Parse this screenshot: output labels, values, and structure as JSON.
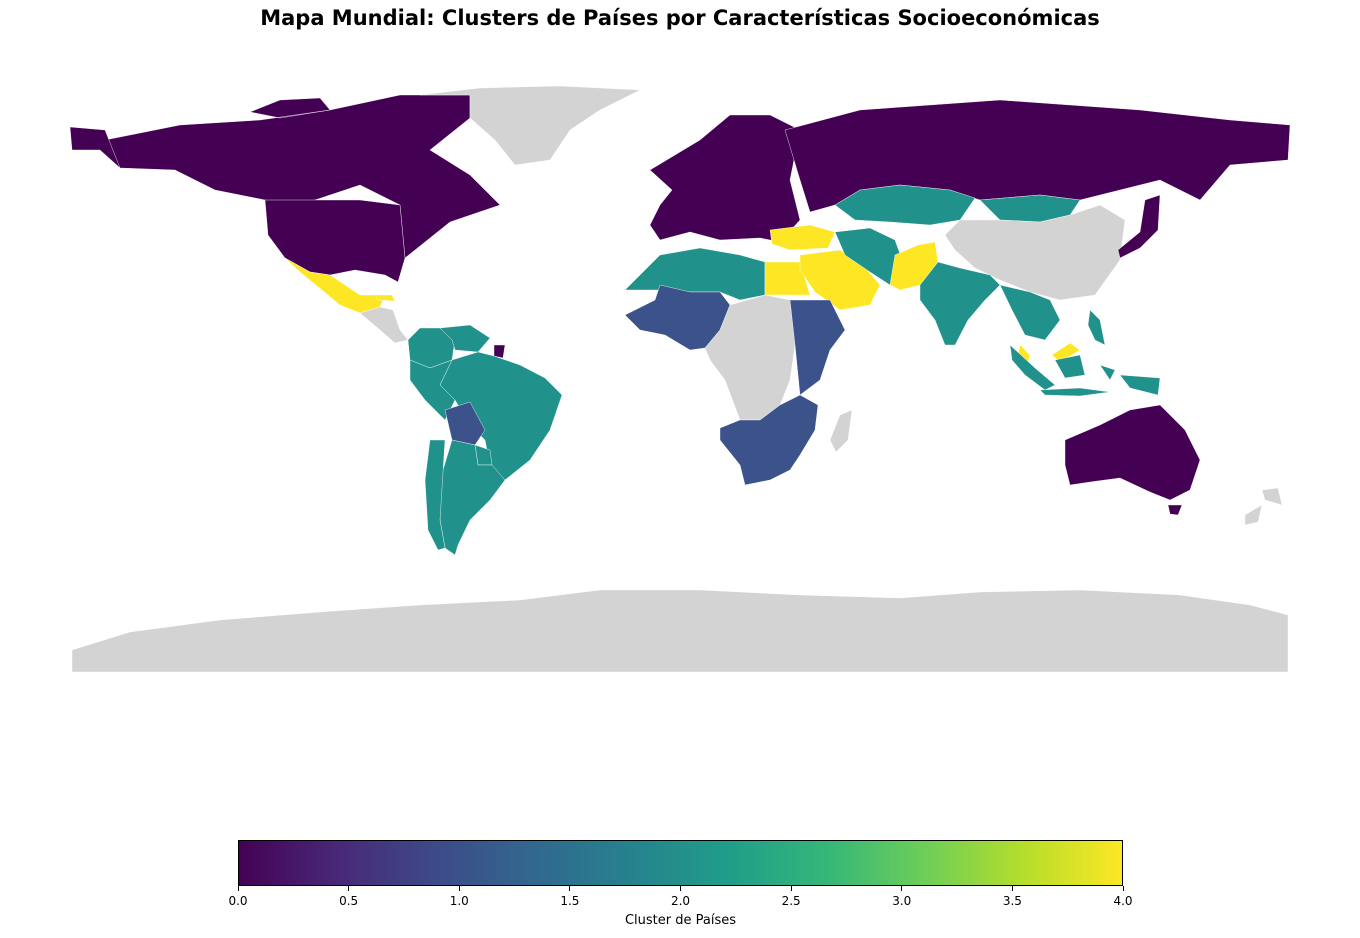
{
  "title": "Mapa Mundial: Clusters de Países por Características Socioeconómicas",
  "colorbar": {
    "label": "Cluster de Países",
    "ticks": [
      "0.0",
      "0.5",
      "1.0",
      "1.5",
      "2.0",
      "2.5",
      "3.0",
      "3.5",
      "4.0"
    ],
    "range": [
      0,
      4
    ]
  },
  "colors": {
    "cluster_0": "#440154",
    "cluster_1": "#3b528b",
    "cluster_2": "#21918c",
    "cluster_3": "#5ec962",
    "cluster_4": "#fde725",
    "no_data": "#d3d3d3"
  },
  "regions": [
    {
      "name": "Canada",
      "cluster": 0
    },
    {
      "name": "United States",
      "cluster": 0
    },
    {
      "name": "Alaska",
      "cluster": 0
    },
    {
      "name": "Mexico",
      "cluster": 4
    },
    {
      "name": "Central America",
      "cluster": null
    },
    {
      "name": "Cuba",
      "cluster": 4
    },
    {
      "name": "Greenland",
      "cluster": null
    },
    {
      "name": "Colombia",
      "cluster": 2
    },
    {
      "name": "Venezuela",
      "cluster": 2
    },
    {
      "name": "French Guiana",
      "cluster": 0
    },
    {
      "name": "Brazil",
      "cluster": 2
    },
    {
      "name": "Peru",
      "cluster": 2
    },
    {
      "name": "Bolivia",
      "cluster": 1
    },
    {
      "name": "Paraguay",
      "cluster": 2
    },
    {
      "name": "Argentina",
      "cluster": 2
    },
    {
      "name": "Chile",
      "cluster": 2
    },
    {
      "name": "Europe",
      "cluster": 0
    },
    {
      "name": "Russia",
      "cluster": 0
    },
    {
      "name": "Turkey",
      "cluster": 4
    },
    {
      "name": "North Africa",
      "cluster": 2
    },
    {
      "name": "Egypt",
      "cluster": 4
    },
    {
      "name": "Saudi Arabia",
      "cluster": 4
    },
    {
      "name": "Iran",
      "cluster": 2
    },
    {
      "name": "Kazakhstan",
      "cluster": 2
    },
    {
      "name": "Mongolia",
      "cluster": 2
    },
    {
      "name": "China",
      "cluster": null
    },
    {
      "name": "Pakistan",
      "cluster": 4
    },
    {
      "name": "India",
      "cluster": 2
    },
    {
      "name": "Southeast Asia",
      "cluster": 2
    },
    {
      "name": "Malaysia",
      "cluster": 4
    },
    {
      "name": "Indonesia",
      "cluster": 2
    },
    {
      "name": "Philippines",
      "cluster": 2
    },
    {
      "name": "Japan",
      "cluster": 0
    },
    {
      "name": "West Africa",
      "cluster": 1
    },
    {
      "name": "Central Africa",
      "cluster": null
    },
    {
      "name": "East Africa",
      "cluster": 1
    },
    {
      "name": "Southern Africa",
      "cluster": 1
    },
    {
      "name": "Madagascar",
      "cluster": null
    },
    {
      "name": "Australia",
      "cluster": 0
    },
    {
      "name": "New Zealand",
      "cluster": null
    },
    {
      "name": "Antarctica",
      "cluster": null
    }
  ]
}
